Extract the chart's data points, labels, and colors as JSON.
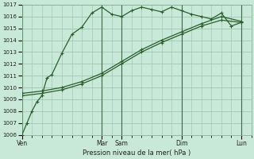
{
  "xlabel": "Pression niveau de la mer( hPa )",
  "ylim": [
    1006,
    1017
  ],
  "yticks": [
    1006,
    1007,
    1008,
    1009,
    1010,
    1011,
    1012,
    1013,
    1014,
    1015,
    1016,
    1017
  ],
  "bg_color": "#c8e8d8",
  "grid_color": "#9bbfac",
  "line_color": "#2a5f2a",
  "vline_color": "#3a6a4a",
  "day_labels": [
    "Ven",
    "Mar",
    "Sam",
    "Dim",
    "Lun"
  ],
  "day_positions": [
    0,
    16,
    20,
    32,
    44
  ],
  "xlim": [
    0,
    46
  ],
  "line1_x": [
    0,
    1,
    2,
    3,
    4,
    5,
    6,
    8,
    10,
    12,
    14,
    16,
    18,
    20,
    22,
    24,
    26,
    28,
    30,
    32,
    34,
    36,
    38,
    40,
    42,
    44
  ],
  "line1_y": [
    1006.0,
    1007.0,
    1008.0,
    1008.8,
    1009.3,
    1010.8,
    1011.1,
    1012.9,
    1014.5,
    1015.1,
    1016.3,
    1016.8,
    1016.2,
    1016.0,
    1016.5,
    1016.8,
    1016.6,
    1016.4,
    1016.8,
    1016.5,
    1016.2,
    1016.0,
    1015.8,
    1016.3,
    1015.2,
    1015.5
  ],
  "line2_x": [
    0,
    4,
    8,
    12,
    16,
    20,
    24,
    28,
    32,
    36,
    40,
    44
  ],
  "line2_y": [
    1009.3,
    1009.5,
    1009.8,
    1010.3,
    1011.0,
    1012.0,
    1013.0,
    1013.8,
    1014.5,
    1015.2,
    1015.7,
    1015.5
  ],
  "line3_x": [
    0,
    4,
    8,
    12,
    16,
    20,
    24,
    28,
    32,
    36,
    40,
    44
  ],
  "line3_y": [
    1009.5,
    1009.7,
    1010.0,
    1010.5,
    1011.2,
    1012.2,
    1013.2,
    1014.0,
    1014.7,
    1015.4,
    1016.0,
    1015.6
  ]
}
